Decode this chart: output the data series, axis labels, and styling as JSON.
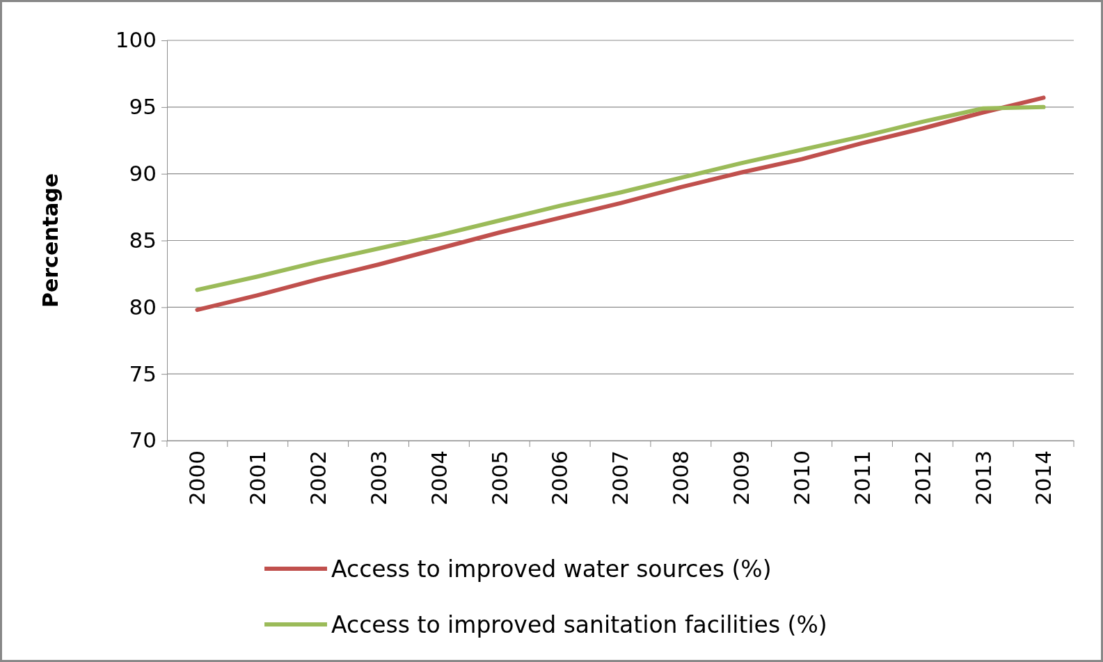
{
  "chart_data": {
    "type": "line",
    "ylabel": "Percentage",
    "categories": [
      "2000",
      "2001",
      "2002",
      "2003",
      "2004",
      "2005",
      "2006",
      "2007",
      "2008",
      "2009",
      "2010",
      "2011",
      "2012",
      "2013",
      "2014"
    ],
    "series": [
      {
        "name": "Access to improved water sources (%)",
        "color": "#c0504d",
        "values": [
          79.8,
          80.9,
          82.1,
          83.2,
          84.4,
          85.6,
          86.7,
          87.8,
          89.0,
          90.1,
          91.1,
          92.3,
          93.4,
          94.6,
          95.7
        ]
      },
      {
        "name": "Access to improved sanitation facilities (%)",
        "color": "#9bbb59",
        "values": [
          81.3,
          82.3,
          83.4,
          84.4,
          85.4,
          86.5,
          87.6,
          88.6,
          89.7,
          90.8,
          91.8,
          92.8,
          93.9,
          94.9,
          95.0
        ]
      }
    ],
    "ylim": [
      70,
      100
    ],
    "yticks": [
      70,
      75,
      80,
      85,
      90,
      95,
      100
    ],
    "grid": "y",
    "legend": "bottom",
    "marker": "none",
    "line_style": "solid"
  }
}
